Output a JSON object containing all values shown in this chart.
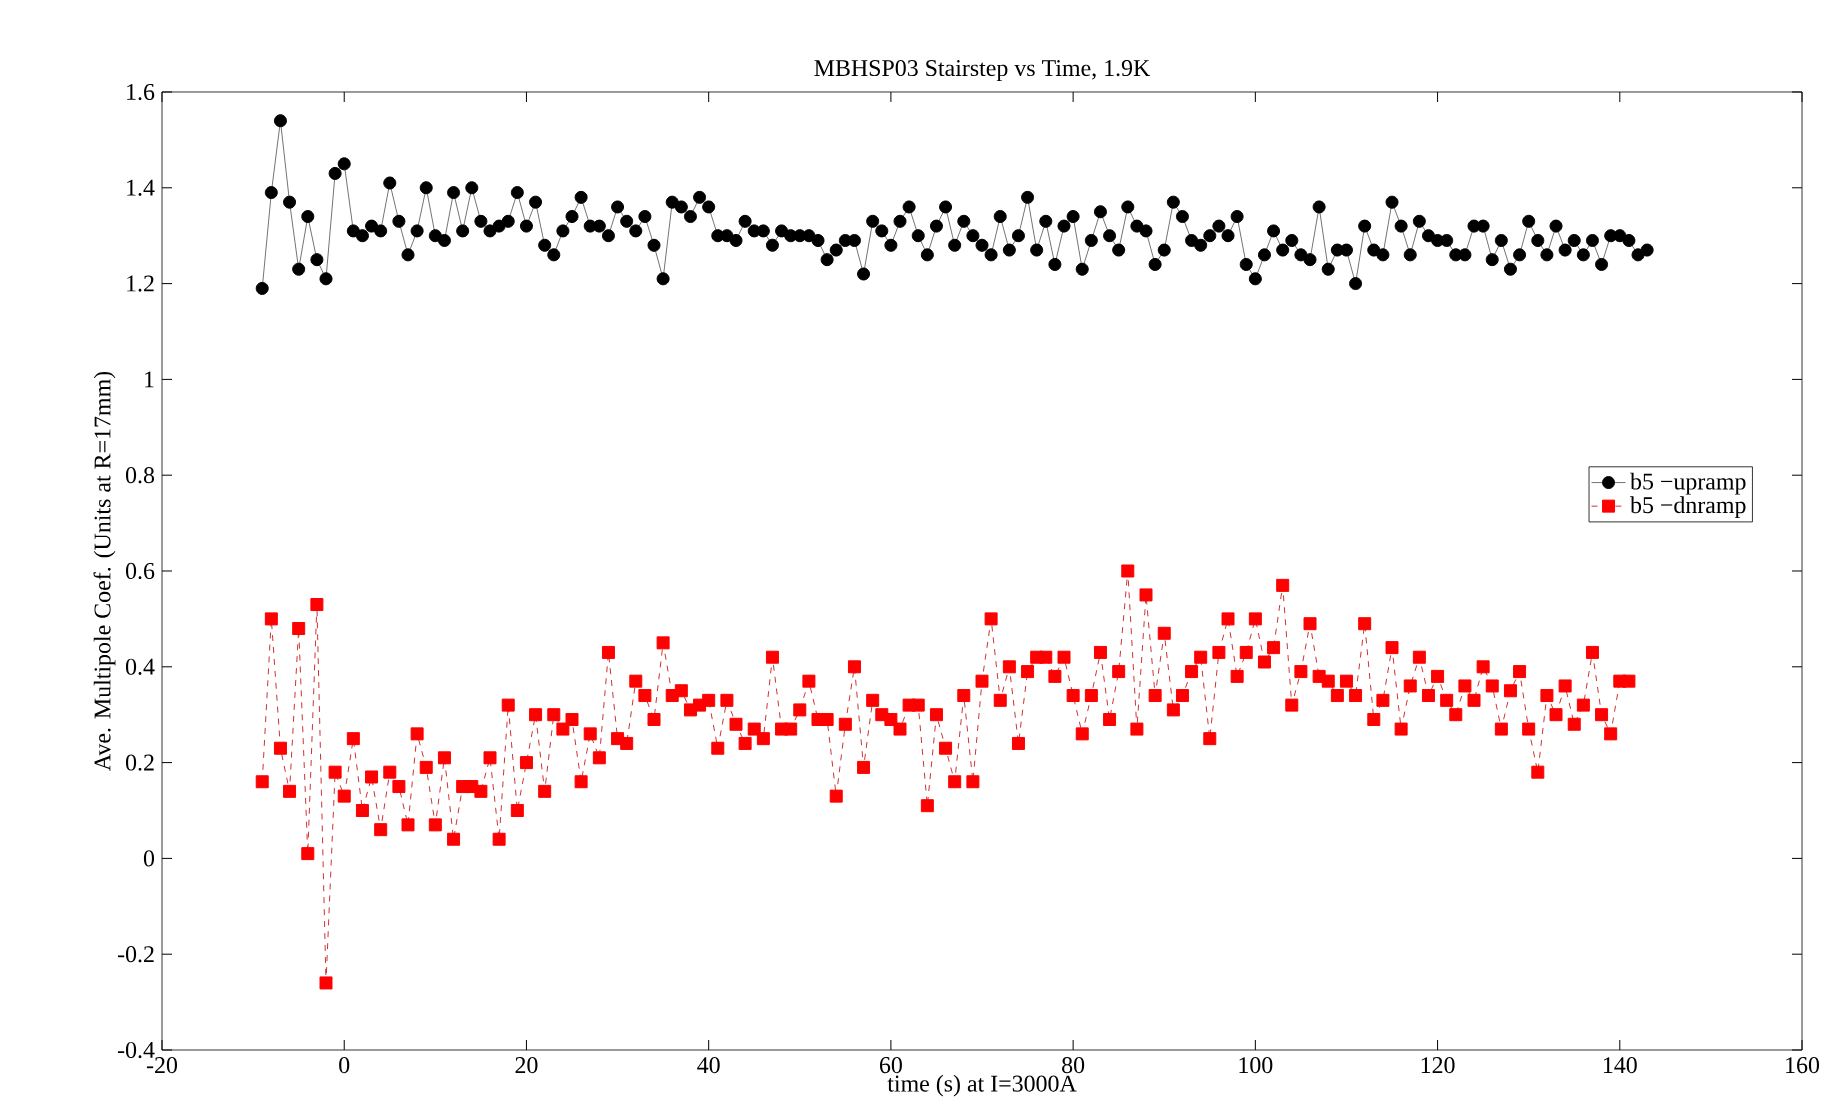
{
  "chart_data": {
    "type": "line",
    "title": "MBHSP03 Stairstep vs Time, 1.9K",
    "xlabel": "time (s)  at I=3000A",
    "ylabel": "Ave. Multipole Coef. (Units at R=17mm)",
    "xlim": [
      -20,
      160
    ],
    "ylim": [
      -0.4,
      1.6
    ],
    "xticks": [
      -20,
      0,
      20,
      40,
      60,
      80,
      100,
      120,
      140,
      160
    ],
    "yticks": [
      -0.4,
      -0.2,
      0,
      0.2,
      0.4,
      0.6,
      0.8,
      1,
      1.2,
      1.4,
      1.6
    ],
    "grid": false,
    "legend": "right",
    "series": [
      {
        "name": "b5 −upramp",
        "color": "#000000",
        "marker": "circle",
        "line_style": "solid",
        "x": [
          -9,
          -8,
          -7,
          -6,
          -5,
          -4,
          -3,
          -2,
          -1,
          0,
          1,
          2,
          3,
          4,
          5,
          6,
          7,
          8,
          9,
          10,
          11,
          12,
          13,
          14,
          15,
          16,
          17,
          18,
          19,
          20,
          21,
          22,
          23,
          24,
          25,
          26,
          27,
          28,
          29,
          30,
          31,
          32,
          33,
          34,
          35,
          36,
          37,
          38,
          39,
          40,
          41,
          42,
          43,
          44,
          45,
          46,
          47,
          48,
          49,
          50,
          51,
          52,
          53,
          54,
          55,
          56,
          57,
          58,
          59,
          60,
          61,
          62,
          63,
          64,
          65,
          66,
          67,
          68,
          69,
          70,
          71,
          72,
          73,
          74,
          75,
          76,
          77,
          78,
          79,
          80,
          81,
          82,
          83,
          84,
          85,
          86,
          87,
          88,
          89,
          90,
          91,
          92,
          93,
          94,
          95,
          96,
          97,
          98,
          99,
          100,
          101,
          102,
          103,
          104,
          105,
          106,
          107,
          108,
          109,
          110,
          111,
          112,
          113,
          114,
          115,
          116,
          117,
          118,
          119,
          120,
          121,
          122,
          123,
          124,
          125,
          126,
          127,
          128,
          129,
          130,
          131,
          132,
          133,
          134,
          135,
          136,
          137,
          138,
          139,
          140,
          141,
          142,
          143
        ],
        "values": [
          1.19,
          1.39,
          1.54,
          1.37,
          1.23,
          1.34,
          1.25,
          1.21,
          1.43,
          1.45,
          1.31,
          1.3,
          1.32,
          1.31,
          1.41,
          1.33,
          1.26,
          1.31,
          1.4,
          1.3,
          1.29,
          1.39,
          1.31,
          1.4,
          1.33,
          1.31,
          1.32,
          1.33,
          1.39,
          1.32,
          1.37,
          1.28,
          1.26,
          1.31,
          1.34,
          1.38,
          1.32,
          1.32,
          1.3,
          1.36,
          1.33,
          1.31,
          1.34,
          1.28,
          1.21,
          1.37,
          1.36,
          1.34,
          1.38,
          1.36,
          1.3,
          1.3,
          1.29,
          1.33,
          1.31,
          1.31,
          1.28,
          1.31,
          1.3,
          1.3,
          1.3,
          1.29,
          1.25,
          1.27,
          1.29,
          1.29,
          1.22,
          1.33,
          1.31,
          1.28,
          1.33,
          1.36,
          1.3,
          1.26,
          1.32,
          1.36,
          1.28,
          1.33,
          1.3,
          1.28,
          1.26,
          1.34,
          1.27,
          1.3,
          1.38,
          1.27,
          1.33,
          1.24,
          1.32,
          1.34,
          1.23,
          1.29,
          1.35,
          1.3,
          1.27,
          1.36,
          1.32,
          1.31,
          1.24,
          1.27,
          1.37,
          1.34,
          1.29,
          1.28,
          1.3,
          1.32,
          1.3,
          1.34,
          1.24,
          1.21,
          1.26,
          1.31,
          1.27,
          1.29,
          1.26,
          1.25,
          1.36,
          1.23,
          1.27,
          1.27,
          1.2,
          1.32,
          1.27,
          1.26,
          1.37,
          1.32,
          1.26,
          1.33,
          1.3,
          1.29,
          1.29,
          1.26,
          1.26,
          1.32,
          1.32,
          1.25,
          1.29,
          1.23,
          1.26,
          1.33,
          1.29,
          1.26,
          1.32,
          1.27,
          1.29,
          1.26,
          1.29,
          1.24,
          1.3,
          1.3,
          1.29,
          1.26,
          1.27
        ]
      },
      {
        "name": "b5 −dnramp",
        "color": "#ff0000",
        "marker": "square",
        "line_style": "dashed",
        "x": [
          -9,
          -8,
          -7,
          -6,
          -5,
          -4,
          -3,
          -2,
          -1,
          0,
          1,
          2,
          3,
          4,
          5,
          6,
          7,
          8,
          9,
          10,
          11,
          12,
          13,
          14,
          15,
          16,
          17,
          18,
          19,
          20,
          21,
          22,
          23,
          24,
          25,
          26,
          27,
          28,
          29,
          30,
          31,
          32,
          33,
          34,
          35,
          36,
          37,
          38,
          39,
          40,
          41,
          42,
          43,
          44,
          45,
          46,
          47,
          48,
          49,
          50,
          51,
          52,
          53,
          54,
          55,
          56,
          57,
          58,
          59,
          60,
          61,
          62,
          63,
          64,
          65,
          66,
          67,
          68,
          69,
          70,
          71,
          72,
          73,
          74,
          75,
          76,
          77,
          78,
          79,
          80,
          81,
          82,
          83,
          84,
          85,
          86,
          87,
          88,
          89,
          90,
          91,
          92,
          93,
          94,
          95,
          96,
          97,
          98,
          99,
          100,
          101,
          102,
          103,
          104,
          105,
          106,
          107,
          108,
          109,
          110,
          111,
          112,
          113,
          114,
          115,
          116,
          117,
          118,
          119,
          120,
          121,
          122,
          123,
          124,
          125,
          126,
          127,
          128,
          129,
          130,
          131,
          132,
          133,
          134,
          135,
          136,
          137,
          138,
          139,
          140,
          141
        ],
        "values": [
          0.16,
          0.5,
          0.23,
          0.14,
          0.48,
          0.01,
          0.53,
          -0.26,
          0.18,
          0.13,
          0.25,
          0.1,
          0.17,
          0.06,
          0.18,
          0.15,
          0.07,
          0.26,
          0.19,
          0.07,
          0.21,
          0.04,
          0.15,
          0.15,
          0.14,
          0.21,
          0.04,
          0.32,
          0.1,
          0.2,
          0.3,
          0.14,
          0.3,
          0.27,
          0.29,
          0.16,
          0.26,
          0.21,
          0.43,
          0.25,
          0.24,
          0.37,
          0.34,
          0.29,
          0.45,
          0.34,
          0.35,
          0.31,
          0.32,
          0.33,
          0.23,
          0.33,
          0.28,
          0.24,
          0.27,
          0.25,
          0.42,
          0.27,
          0.27,
          0.31,
          0.37,
          0.29,
          0.29,
          0.13,
          0.28,
          0.4,
          0.19,
          0.33,
          0.3,
          0.29,
          0.27,
          0.32,
          0.32,
          0.11,
          0.3,
          0.23,
          0.16,
          0.34,
          0.16,
          0.37,
          0.5,
          0.33,
          0.4,
          0.24,
          0.39,
          0.42,
          0.42,
          0.38,
          0.42,
          0.34,
          0.26,
          0.34,
          0.43,
          0.29,
          0.39,
          0.6,
          0.27,
          0.55,
          0.34,
          0.47,
          0.31,
          0.34,
          0.39,
          0.42,
          0.25,
          0.43,
          0.5,
          0.38,
          0.43,
          0.5,
          0.41,
          0.44,
          0.57,
          0.32,
          0.39,
          0.49,
          0.38,
          0.37,
          0.34,
          0.37,
          0.34,
          0.49,
          0.29,
          0.33,
          0.44,
          0.27,
          0.36,
          0.42,
          0.34,
          0.38,
          0.33,
          0.3,
          0.36,
          0.33,
          0.4,
          0.36,
          0.27,
          0.35,
          0.39,
          0.27,
          0.18,
          0.34,
          0.3,
          0.36,
          0.28,
          0.32,
          0.43,
          0.3,
          0.26,
          0.37,
          0.37
        ]
      }
    ]
  }
}
